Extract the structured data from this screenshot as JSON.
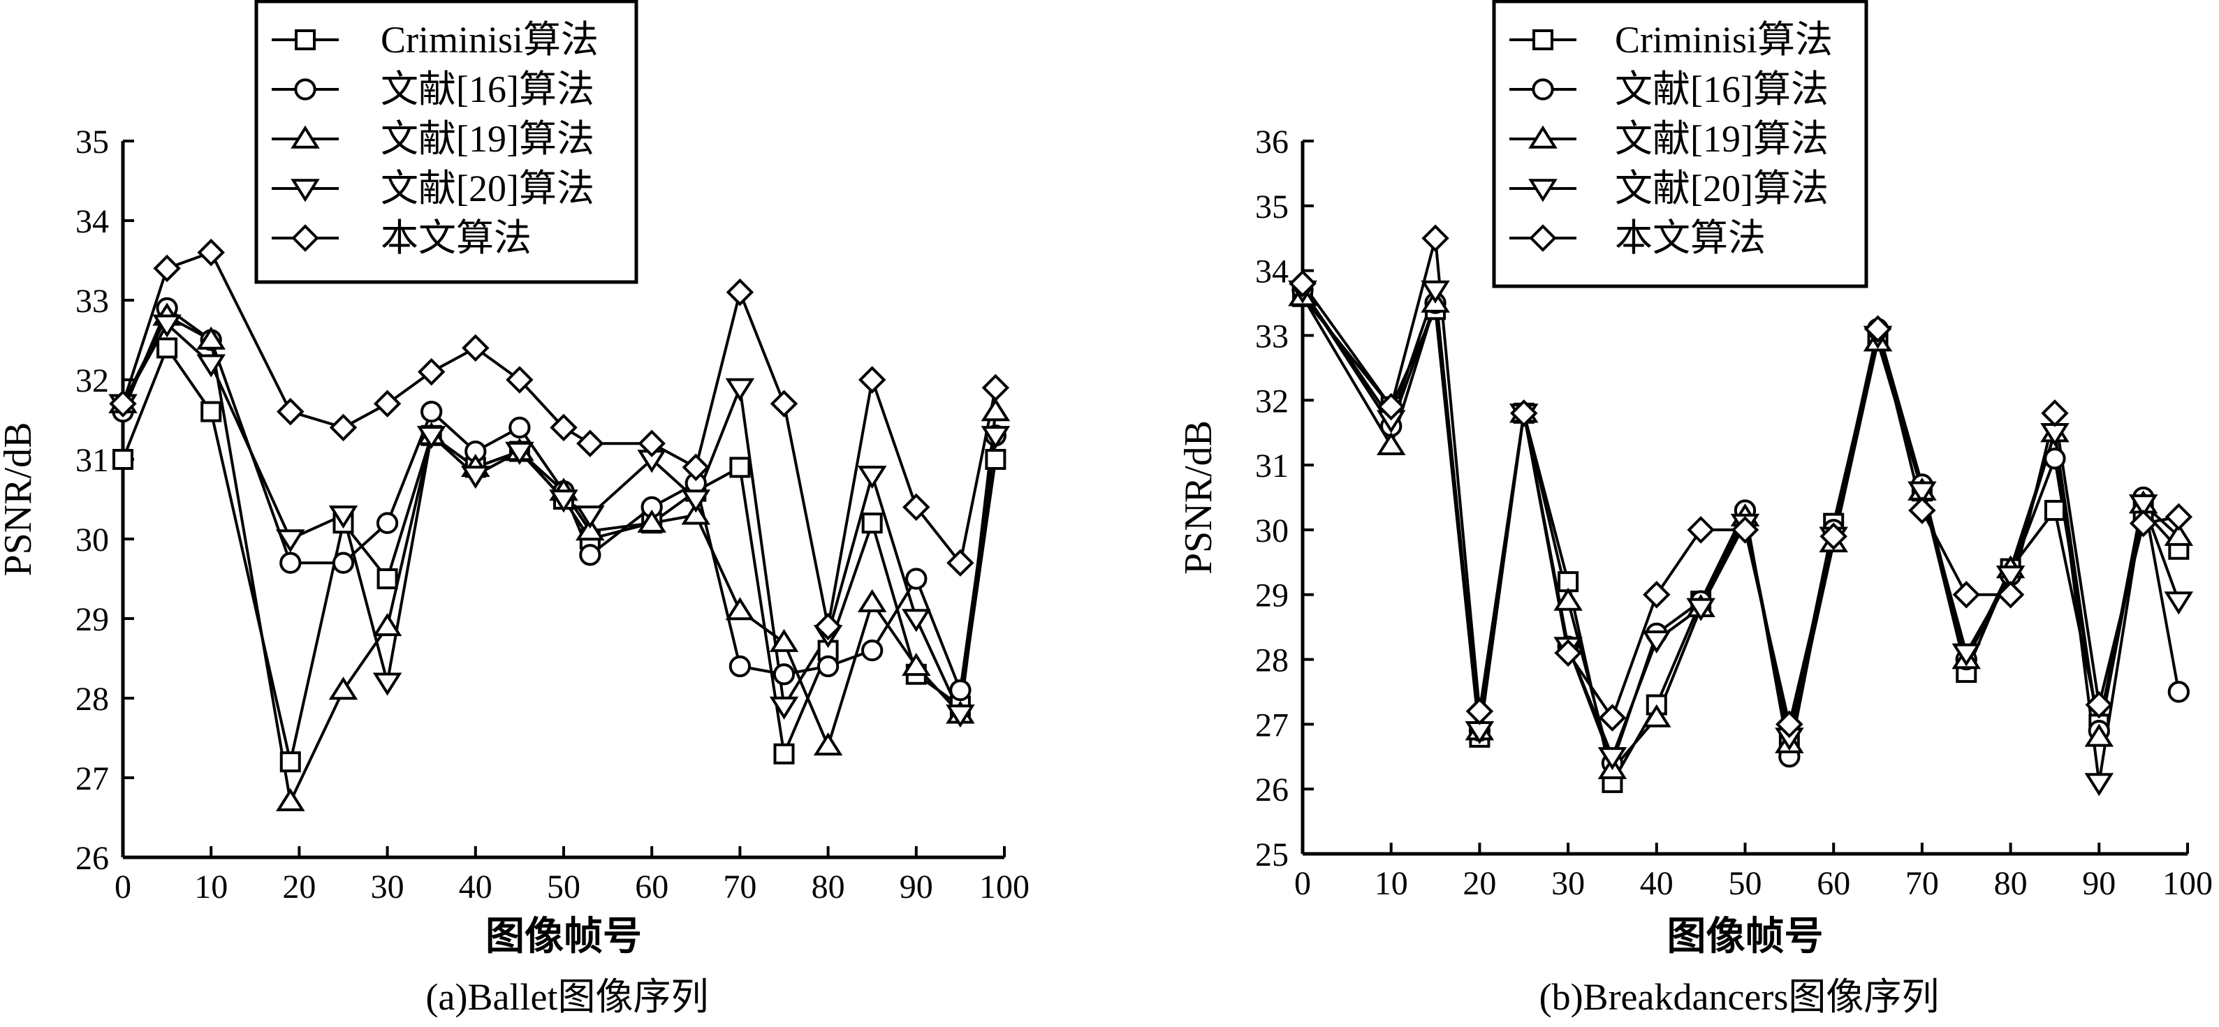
{
  "chart_data": [
    {
      "type": "line",
      "caption": "(a)Ballet图像序列",
      "xlabel": "图像帧号",
      "ylabel": "PSNR/dB",
      "xlim": [
        0,
        100
      ],
      "ylim": [
        26,
        35
      ],
      "xticks": [
        0,
        10,
        20,
        30,
        40,
        50,
        60,
        70,
        80,
        90,
        100
      ],
      "yticks": [
        26,
        27,
        28,
        29,
        30,
        31,
        32,
        33,
        34,
        35
      ],
      "legend": "top-left",
      "series": [
        {
          "name": "Criminisi算法",
          "marker": "square",
          "x": [
            0,
            5,
            10,
            19,
            25,
            30,
            35,
            40,
            45,
            50,
            53,
            60,
            65,
            70,
            75,
            80,
            85,
            90,
            95,
            99
          ],
          "y": [
            31.0,
            32.4,
            31.6,
            27.2,
            30.2,
            29.5,
            31.3,
            30.9,
            31.1,
            30.5,
            30.0,
            30.2,
            30.6,
            30.9,
            27.3,
            28.6,
            30.2,
            28.3,
            27.9,
            31.0
          ]
        },
        {
          "name": "文献[16]算法",
          "marker": "circle",
          "x": [
            0,
            5,
            10,
            19,
            25,
            30,
            35,
            40,
            45,
            50,
            53,
            60,
            65,
            70,
            75,
            80,
            85,
            90,
            95,
            99
          ],
          "y": [
            31.6,
            32.9,
            32.5,
            29.7,
            29.7,
            30.2,
            31.6,
            31.1,
            31.4,
            30.6,
            29.8,
            30.4,
            30.7,
            28.4,
            28.3,
            28.4,
            28.6,
            29.5,
            28.1,
            31.3
          ]
        },
        {
          "name": "文献[19]算法",
          "marker": "triangle-up",
          "x": [
            0,
            5,
            10,
            19,
            25,
            30,
            35,
            40,
            45,
            50,
            53,
            60,
            65,
            70,
            75,
            80,
            85,
            90,
            95,
            99
          ],
          "y": [
            31.7,
            32.8,
            32.5,
            26.7,
            28.1,
            28.9,
            31.3,
            30.9,
            31.1,
            30.6,
            30.1,
            30.2,
            30.3,
            29.1,
            28.7,
            27.4,
            29.2,
            28.4,
            27.8,
            31.6
          ]
        },
        {
          "name": "文献[20]算法",
          "marker": "triangle-down",
          "x": [
            0,
            5,
            10,
            19,
            25,
            30,
            35,
            40,
            45,
            50,
            53,
            60,
            65,
            70,
            75,
            80,
            85,
            90,
            95,
            99
          ],
          "y": [
            31.7,
            32.7,
            32.2,
            30.0,
            30.3,
            28.2,
            31.3,
            30.8,
            31.1,
            30.5,
            30.3,
            31.0,
            30.5,
            31.9,
            27.9,
            28.8,
            30.8,
            29.0,
            27.8,
            31.3
          ]
        },
        {
          "name": "本文算法",
          "marker": "diamond",
          "x": [
            0,
            5,
            10,
            19,
            25,
            30,
            35,
            40,
            45,
            50,
            53,
            60,
            65,
            70,
            75,
            80,
            85,
            90,
            95,
            99
          ],
          "y": [
            31.7,
            33.4,
            33.6,
            31.6,
            31.4,
            31.7,
            32.1,
            32.4,
            32.0,
            31.4,
            31.2,
            31.2,
            30.9,
            33.1,
            31.7,
            28.9,
            32.0,
            30.4,
            29.7,
            31.9
          ]
        }
      ]
    },
    {
      "type": "line",
      "caption": "(b)Breakdancers图像序列",
      "xlabel": "图像帧号",
      "ylabel": "PSNR/dB",
      "xlim": [
        0,
        100
      ],
      "ylim": [
        25,
        36
      ],
      "xticks": [
        0,
        10,
        20,
        30,
        40,
        50,
        60,
        70,
        80,
        90,
        100
      ],
      "yticks": [
        25,
        26,
        27,
        28,
        29,
        30,
        31,
        32,
        33,
        34,
        35,
        36
      ],
      "legend": "top-center",
      "series": [
        {
          "name": "Criminisi算法",
          "marker": "square",
          "x": [
            0,
            10,
            15,
            20,
            25,
            30,
            35,
            40,
            45,
            50,
            55,
            60,
            65,
            70,
            75,
            80,
            85,
            90,
            95,
            99
          ],
          "y": [
            33.6,
            31.9,
            33.4,
            26.8,
            31.8,
            29.2,
            26.1,
            27.3,
            28.9,
            30.2,
            26.8,
            30.1,
            33.0,
            30.6,
            27.8,
            29.4,
            30.3,
            27.0,
            30.3,
            29.7
          ]
        },
        {
          "name": "文献[16]算法",
          "marker": "circle",
          "x": [
            0,
            10,
            15,
            20,
            25,
            30,
            35,
            40,
            45,
            50,
            55,
            60,
            65,
            70,
            75,
            80,
            85,
            90,
            95,
            99
          ],
          "y": [
            33.7,
            31.6,
            33.5,
            26.9,
            31.8,
            28.2,
            26.4,
            28.4,
            28.9,
            30.3,
            26.5,
            30.0,
            33.1,
            30.7,
            28.0,
            29.3,
            31.1,
            26.9,
            30.5,
            27.5
          ]
        },
        {
          "name": "文献[19]算法",
          "marker": "triangle-up",
          "x": [
            0,
            10,
            15,
            20,
            25,
            30,
            35,
            40,
            45,
            50,
            55,
            60,
            65,
            70,
            75,
            80,
            85,
            90,
            95,
            99
          ],
          "y": [
            33.6,
            31.3,
            33.5,
            26.9,
            31.8,
            28.9,
            26.3,
            27.1,
            28.8,
            30.2,
            26.7,
            29.8,
            32.9,
            30.6,
            28.0,
            29.4,
            31.5,
            26.8,
            30.4,
            29.9
          ]
        },
        {
          "name": "文献[20]算法",
          "marker": "triangle-down",
          "x": [
            0,
            10,
            15,
            20,
            25,
            30,
            35,
            40,
            45,
            50,
            55,
            60,
            65,
            70,
            75,
            80,
            85,
            90,
            95,
            99
          ],
          "y": [
            33.7,
            31.7,
            33.7,
            26.9,
            31.8,
            28.2,
            26.5,
            28.3,
            28.8,
            30.1,
            26.8,
            29.9,
            33.0,
            30.6,
            28.1,
            29.3,
            31.5,
            26.1,
            30.4,
            28.9
          ]
        },
        {
          "name": "本文算法",
          "marker": "diamond",
          "x": [
            0,
            10,
            15,
            20,
            25,
            30,
            35,
            40,
            45,
            50,
            55,
            60,
            65,
            70,
            75,
            80,
            85,
            90,
            95,
            99
          ],
          "y": [
            33.8,
            31.9,
            34.5,
            27.2,
            31.8,
            28.1,
            27.1,
            29.0,
            30.0,
            30.0,
            27.0,
            29.9,
            33.1,
            30.3,
            29.0,
            29.0,
            31.8,
            27.3,
            30.1,
            30.2
          ]
        }
      ]
    }
  ]
}
